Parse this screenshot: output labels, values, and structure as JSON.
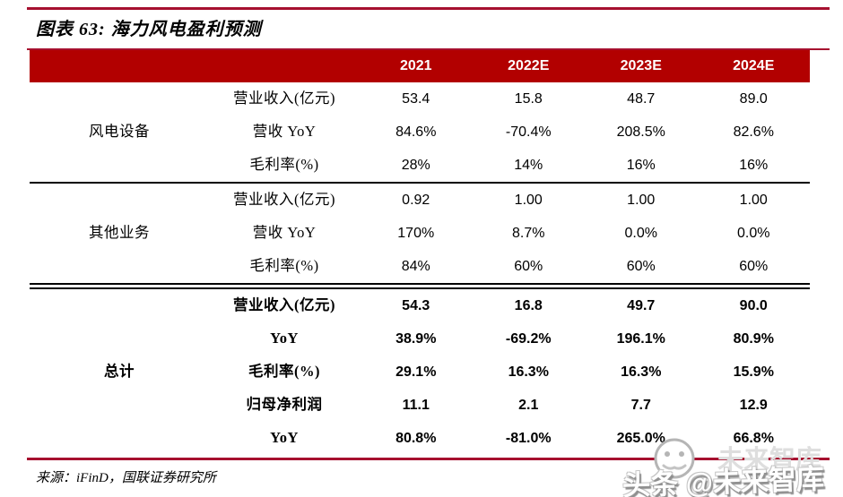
{
  "figure": {
    "title": "图表 63:  海力风电盈利预测",
    "source": "来源：iFinD，国联证券研究所"
  },
  "table": {
    "columns": [
      "2021",
      "2022E",
      "2023E",
      "2024E"
    ],
    "sections": [
      {
        "group": "风电设备",
        "bold": false,
        "rows": [
          {
            "label": "营业收入(亿元)",
            "values": [
              "53.4",
              "15.8",
              "48.7",
              "89.0"
            ]
          },
          {
            "label": "营收 YoY",
            "values": [
              "84.6%",
              "-70.4%",
              "208.5%",
              "82.6%"
            ]
          },
          {
            "label": "毛利率(%)",
            "values": [
              "28%",
              "14%",
              "16%",
              "16%"
            ]
          }
        ]
      },
      {
        "group": "其他业务",
        "bold": false,
        "rows": [
          {
            "label": "营业收入(亿元)",
            "values": [
              "0.92",
              "1.00",
              "1.00",
              "1.00"
            ]
          },
          {
            "label": "营收 YoY",
            "values": [
              "170%",
              "8.7%",
              "0.0%",
              "0.0%"
            ]
          },
          {
            "label": "毛利率(%)",
            "values": [
              "84%",
              "60%",
              "60%",
              "60%"
            ]
          }
        ]
      },
      {
        "group": "总计",
        "bold": true,
        "rows": [
          {
            "label": "营业收入(亿元)",
            "values": [
              "54.3",
              "16.8",
              "49.7",
              "90.0"
            ]
          },
          {
            "label": "YoY",
            "values": [
              "38.9%",
              "-69.2%",
              "196.1%",
              "80.9%"
            ]
          },
          {
            "label": "毛利率(%)",
            "values": [
              "29.1%",
              "16.3%",
              "16.3%",
              "15.9%"
            ]
          },
          {
            "label": "归母净利润",
            "values": [
              "11.1",
              "2.1",
              "7.7",
              "12.9"
            ]
          },
          {
            "label": "YoY",
            "values": [
              "80.8%",
              "-81.0%",
              "265.0%",
              "66.8%"
            ]
          }
        ]
      }
    ]
  },
  "watermark": {
    "text": "头条 @未来智库",
    "ghost": "未来智库"
  },
  "colors": {
    "header_bg": "#b20000",
    "rule_red": "#a6102f",
    "separator_black": "#000000"
  }
}
